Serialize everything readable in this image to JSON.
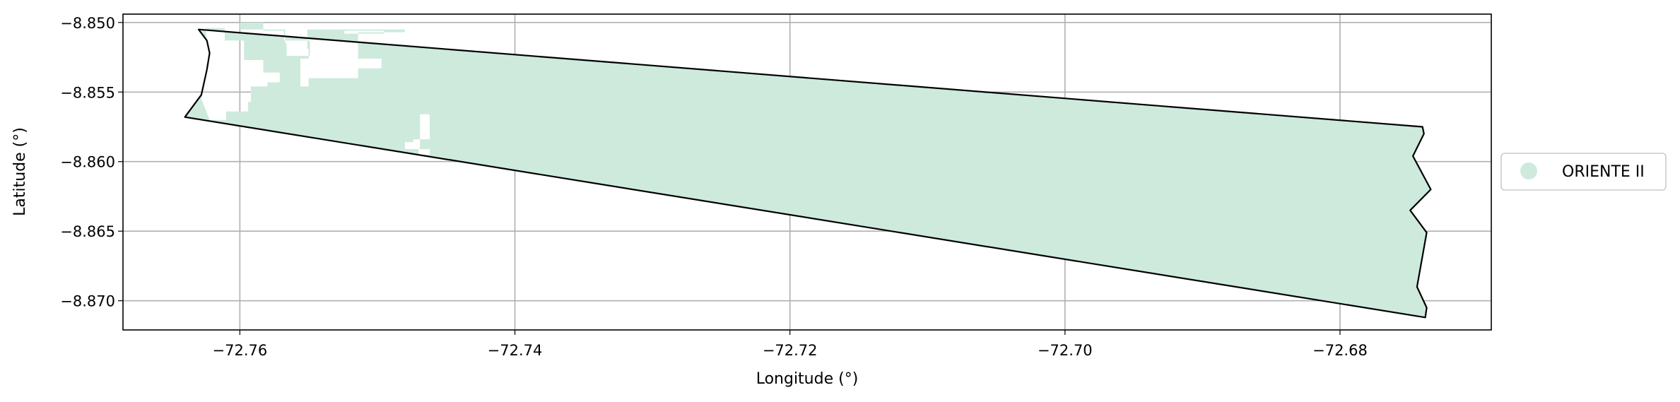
{
  "chart_data": {
    "type": "map",
    "xlabel": "Longitude (°)",
    "ylabel": "Latitude (°)",
    "xlim": [
      -72.7685,
      -72.669
    ],
    "ylim": [
      -8.8721,
      -8.8494
    ],
    "grid": true,
    "x_ticks": [
      {
        "value": -72.76,
        "label": "−72.76"
      },
      {
        "value": -72.74,
        "label": "−72.74"
      },
      {
        "value": -72.72,
        "label": "−72.72"
      },
      {
        "value": -72.7,
        "label": "−72.70"
      },
      {
        "value": -72.68,
        "label": "−72.68"
      }
    ],
    "y_ticks": [
      {
        "value": -8.85,
        "label": "−8.850"
      },
      {
        "value": -8.855,
        "label": "−8.855"
      },
      {
        "value": -8.86,
        "label": "−8.860"
      },
      {
        "value": -8.865,
        "label": "−8.865"
      },
      {
        "value": -8.87,
        "label": "−8.870"
      }
    ],
    "legend": {
      "placement": "right",
      "entries": [
        {
          "label": "ORIENTE II",
          "color": "#cdeadd"
        }
      ]
    },
    "fill_color": "#cdeadd",
    "outline_color": "#000000",
    "boundary": [
      [
        -72.763,
        -8.8505
      ],
      [
        -72.674,
        -8.8575
      ],
      [
        -72.6739,
        -8.858
      ],
      [
        -72.6747,
        -8.8596
      ],
      [
        -72.6734,
        -8.862
      ],
      [
        -72.6749,
        -8.8635
      ],
      [
        -72.6737,
        -8.8651
      ],
      [
        -72.6744,
        -8.869
      ],
      [
        -72.6737,
        -8.8705
      ],
      [
        -72.6738,
        -8.8712
      ],
      [
        -72.764,
        -8.8568
      ],
      [
        -72.7628,
        -8.8552
      ],
      [
        -72.7624,
        -8.8534
      ],
      [
        -72.7622,
        -8.8522
      ],
      [
        -72.7624,
        -8.8513
      ],
      [
        -72.763,
        -8.8505
      ]
    ],
    "cleared_areas": [
      [
        [
          -72.7625,
          -8.8504
        ],
        [
          -72.7611,
          -8.8504
        ],
        [
          -72.7611,
          -8.8513
        ],
        [
          -72.7597,
          -8.8513
        ],
        [
          -72.7597,
          -8.8527
        ],
        [
          -72.7583,
          -8.8527
        ],
        [
          -72.7583,
          -8.8536
        ],
        [
          -72.7571,
          -8.8536
        ],
        [
          -72.7571,
          -8.8543
        ],
        [
          -72.758,
          -8.8543
        ],
        [
          -72.758,
          -8.8546
        ],
        [
          -72.7592,
          -8.8546
        ],
        [
          -72.7592,
          -8.8557
        ],
        [
          -72.7594,
          -8.8557
        ],
        [
          -72.7594,
          -8.8564
        ],
        [
          -72.761,
          -8.8564
        ],
        [
          -72.761,
          -8.857
        ],
        [
          -72.7622,
          -8.857
        ],
        [
          -72.7628,
          -8.8555
        ],
        [
          -72.7624,
          -8.8534
        ],
        [
          -72.7622,
          -8.8522
        ],
        [
          -72.7624,
          -8.8513
        ]
      ],
      [
        [
          -72.76,
          -8.8505
        ],
        [
          -72.7567,
          -8.8505
        ],
        [
          -72.7567,
          -8.8515
        ],
        [
          -72.7566,
          -8.8515
        ],
        [
          -72.7566,
          -8.8524
        ],
        [
          -72.7549,
          -8.8524
        ],
        [
          -72.7549,
          -8.8513
        ],
        [
          -72.7568,
          -8.8513
        ],
        [
          -72.7568,
          -8.8506
        ],
        [
          -72.7583,
          -8.8506
        ],
        [
          -72.7583,
          -8.85
        ],
        [
          -72.76,
          -8.85
        ]
      ],
      [
        [
          -72.7551,
          -8.8505
        ],
        [
          -72.748,
          -8.8505
        ],
        [
          -72.748,
          -8.8507
        ],
        [
          -72.7514,
          -8.8507
        ],
        [
          -72.7514,
          -8.8526
        ],
        [
          -72.755,
          -8.8526
        ],
        [
          -72.755,
          -8.8519
        ],
        [
          -72.7551,
          -8.8519
        ]
      ],
      [
        [
          -72.7524,
          -8.8506
        ],
        [
          -72.7495,
          -8.8506
        ],
        [
          -72.7495,
          -8.8508
        ],
        [
          -72.7524,
          -8.8508
        ]
      ],
      [
        [
          -72.7556,
          -8.8526
        ],
        [
          -72.7497,
          -8.8526
        ],
        [
          -72.7497,
          -8.8533
        ],
        [
          -72.7514,
          -8.8533
        ],
        [
          -72.7514,
          -8.854
        ],
        [
          -72.755,
          -8.854
        ],
        [
          -72.755,
          -8.8546
        ],
        [
          -72.7556,
          -8.8546
        ]
      ],
      [
        [
          -72.7548,
          -8.8566
        ],
        [
          -72.7469,
          -8.8566
        ],
        [
          -72.7469,
          -8.859
        ],
        [
          -72.747,
          -8.8591
        ],
        [
          -72.747,
          -8.8595
        ],
        [
          -72.7462,
          -8.8595
        ],
        [
          -72.7462,
          -8.8566
        ],
        [
          -72.7548,
          -8.8566
        ]
      ],
      [
        [
          -72.7474,
          -8.8584
        ],
        [
          -72.7462,
          -8.8584
        ],
        [
          -72.7462,
          -8.8591
        ],
        [
          -72.748,
          -8.8591
        ],
        [
          -72.748,
          -8.8586
        ],
        [
          -72.7474,
          -8.8586
        ]
      ]
    ]
  }
}
